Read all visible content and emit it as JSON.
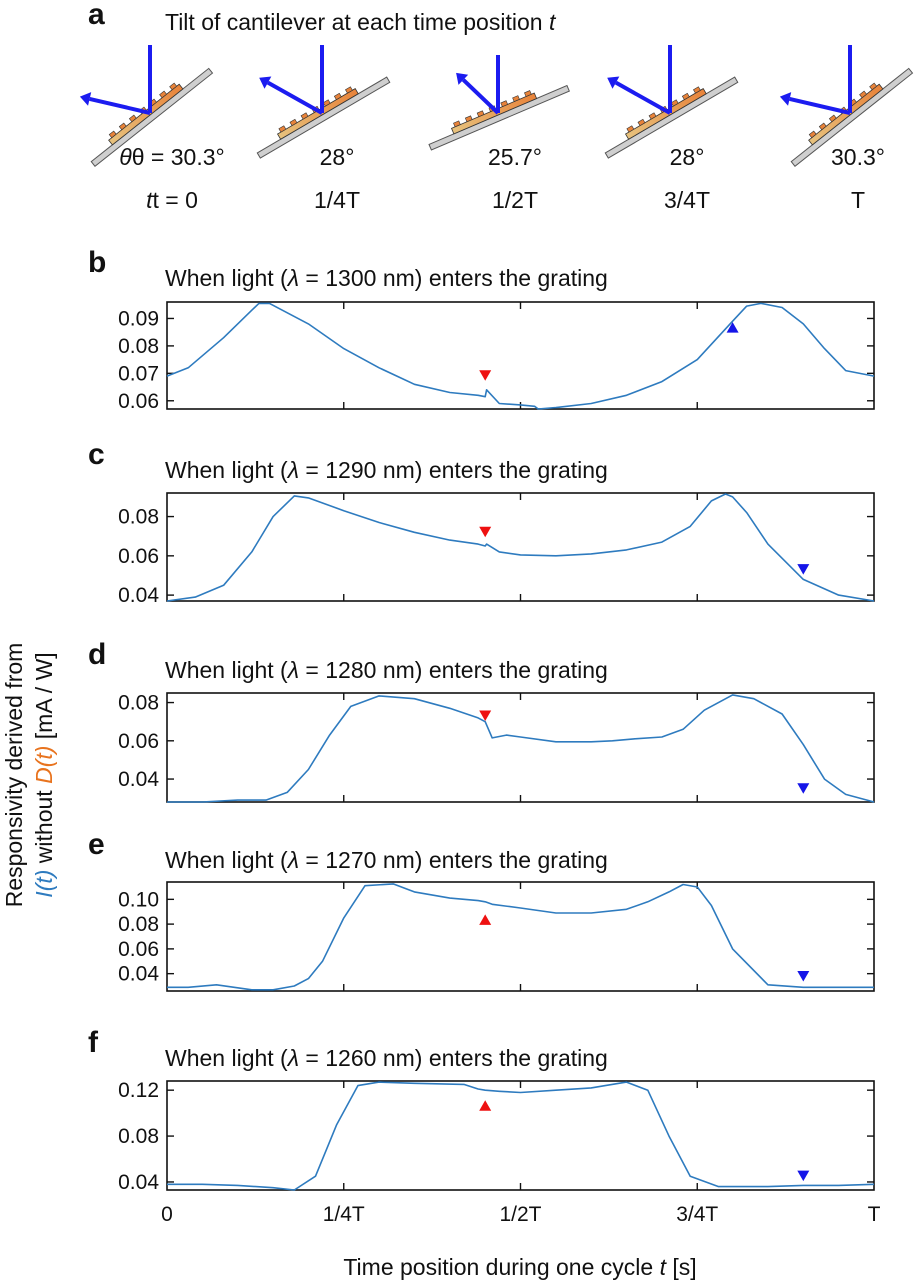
{
  "figure": {
    "panel_a": {
      "label": "a",
      "title_text": "Tilt of cantilever at each time position ",
      "title_var": "t",
      "items": [
        {
          "angle": "30.3°",
          "angle_prefix": "θ = ",
          "time": "0",
          "time_prefix": "t = "
        },
        {
          "angle": "28°",
          "time": "1/4T"
        },
        {
          "angle": "25.7°",
          "time": "1/2T"
        },
        {
          "angle": "28°",
          "time": "3/4T"
        },
        {
          "angle": "30.3°",
          "time": "T"
        }
      ],
      "colors": {
        "arrow": "#1c1cf0",
        "beam": "#cfcfcf",
        "grating": "#e8833a",
        "grating_light": "#e7c27d"
      }
    },
    "y_label": {
      "line1": "Responsivity derived from",
      "l_t": "I(t)",
      "without": " without ",
      "d_t": "D(t)",
      "units": "  [mA / W]"
    },
    "x_label": {
      "text": "Time position during one cycle ",
      "var": "t",
      "units": "  [s]"
    }
  },
  "chart_data": [
    {
      "type": "line",
      "panel": "b",
      "title_pre": "When light (",
      "title_lambda": "λ",
      "title_post": " = 1300 nm) enters the grating",
      "x_ticks": [
        "0",
        "1/4T",
        "1/2T",
        "3/4T",
        "T"
      ],
      "x_range": [
        0,
        1
      ],
      "ylim": [
        0.057,
        0.096
      ],
      "y_ticks": [
        "0.06",
        "0.07",
        "0.08",
        "0.09"
      ],
      "y_tick_values": [
        0.06,
        0.07,
        0.08,
        0.09
      ],
      "series": [
        {
          "color": "#2e7bbf",
          "x": [
            0,
            0.03,
            0.08,
            0.12,
            0.13,
            0.145,
            0.2,
            0.25,
            0.3,
            0.35,
            0.4,
            0.44,
            0.45,
            0.452,
            0.47,
            0.5,
            0.52,
            0.525,
            0.55,
            0.6,
            0.65,
            0.7,
            0.75,
            0.8,
            0.82,
            0.84,
            0.87,
            0.9,
            0.93,
            0.96,
            1.0
          ],
          "y": [
            0.069,
            0.072,
            0.083,
            0.093,
            0.0955,
            0.0955,
            0.088,
            0.079,
            0.072,
            0.066,
            0.063,
            0.062,
            0.0615,
            0.064,
            0.059,
            0.0585,
            0.058,
            0.057,
            0.0575,
            0.059,
            0.062,
            0.067,
            0.075,
            0.089,
            0.0945,
            0.0955,
            0.094,
            0.088,
            0.079,
            0.071,
            0.069
          ]
        }
      ],
      "markers": [
        {
          "x": 0.45,
          "y": 0.0695,
          "shape": "triangle-down",
          "color": "#ee1111"
        },
        {
          "x": 0.8,
          "y": 0.0865,
          "shape": "triangle-up",
          "color": "#1515e8"
        }
      ]
    },
    {
      "type": "line",
      "panel": "c",
      "title_pre": "When light (",
      "title_lambda": "λ",
      "title_post": " = 1290 nm) enters the grating",
      "x_ticks": [
        "0",
        "1/4T",
        "1/2T",
        "3/4T",
        "T"
      ],
      "x_range": [
        0,
        1
      ],
      "ylim": [
        0.037,
        0.092
      ],
      "y_ticks": [
        "0.04",
        "0.06",
        "0.08"
      ],
      "y_tick_values": [
        0.04,
        0.06,
        0.08
      ],
      "series": [
        {
          "color": "#2e7bbf",
          "x": [
            0,
            0.04,
            0.08,
            0.12,
            0.15,
            0.18,
            0.2,
            0.25,
            0.3,
            0.35,
            0.4,
            0.44,
            0.45,
            0.452,
            0.47,
            0.5,
            0.55,
            0.6,
            0.65,
            0.7,
            0.74,
            0.77,
            0.79,
            0.8,
            0.82,
            0.85,
            0.9,
            0.95,
            1.0
          ],
          "y": [
            0.037,
            0.039,
            0.045,
            0.062,
            0.08,
            0.0905,
            0.0895,
            0.083,
            0.077,
            0.072,
            0.068,
            0.066,
            0.065,
            0.066,
            0.062,
            0.0605,
            0.06,
            0.061,
            0.063,
            0.067,
            0.075,
            0.088,
            0.0915,
            0.09,
            0.082,
            0.066,
            0.048,
            0.04,
            0.037
          ]
        }
      ],
      "markers": [
        {
          "x": 0.45,
          "y": 0.0725,
          "shape": "triangle-down",
          "color": "#ee1111"
        },
        {
          "x": 0.9,
          "y": 0.0535,
          "shape": "triangle-down",
          "color": "#1515e8"
        }
      ]
    },
    {
      "type": "line",
      "panel": "d",
      "title_pre": "When light (",
      "title_lambda": "λ",
      "title_post": " = 1280 nm) enters the grating",
      "x_ticks": [
        "0",
        "1/4T",
        "1/2T",
        "3/4T",
        "T"
      ],
      "x_range": [
        0,
        1
      ],
      "ylim": [
        0.028,
        0.085
      ],
      "y_ticks": [
        "0.04",
        "0.06",
        "0.08"
      ],
      "y_tick_values": [
        0.04,
        0.06,
        0.08
      ],
      "series": [
        {
          "color": "#2e7bbf",
          "x": [
            0,
            0.05,
            0.1,
            0.14,
            0.17,
            0.2,
            0.23,
            0.26,
            0.3,
            0.35,
            0.4,
            0.44,
            0.45,
            0.46,
            0.48,
            0.5,
            0.55,
            0.6,
            0.63,
            0.66,
            0.7,
            0.73,
            0.76,
            0.8,
            0.83,
            0.87,
            0.9,
            0.93,
            0.96,
            1.0
          ],
          "y": [
            0.028,
            0.028,
            0.029,
            0.029,
            0.033,
            0.045,
            0.063,
            0.078,
            0.0835,
            0.082,
            0.077,
            0.072,
            0.07,
            0.0615,
            0.063,
            0.062,
            0.0595,
            0.0595,
            0.06,
            0.061,
            0.062,
            0.066,
            0.076,
            0.084,
            0.082,
            0.074,
            0.058,
            0.04,
            0.032,
            0.028
          ]
        }
      ],
      "markers": [
        {
          "x": 0.45,
          "y": 0.0735,
          "shape": "triangle-down",
          "color": "#ee1111"
        },
        {
          "x": 0.9,
          "y": 0.0355,
          "shape": "triangle-down",
          "color": "#1515e8"
        }
      ]
    },
    {
      "type": "line",
      "panel": "e",
      "title_pre": "When light (",
      "title_lambda": "λ",
      "title_post": " = 1270 nm) enters the grating",
      "x_ticks": [
        "0",
        "1/4T",
        "1/2T",
        "3/4T",
        "T"
      ],
      "x_range": [
        0,
        1
      ],
      "ylim": [
        0.026,
        0.114
      ],
      "y_ticks": [
        "0.04",
        "0.06",
        "0.08",
        "0.10"
      ],
      "y_tick_values": [
        0.04,
        0.06,
        0.08,
        0.1
      ],
      "series": [
        {
          "color": "#2e7bbf",
          "x": [
            0,
            0.03,
            0.07,
            0.12,
            0.15,
            0.18,
            0.2,
            0.22,
            0.25,
            0.28,
            0.32,
            0.35,
            0.4,
            0.44,
            0.45,
            0.46,
            0.5,
            0.55,
            0.6,
            0.65,
            0.68,
            0.71,
            0.73,
            0.75,
            0.77,
            0.8,
            0.85,
            0.9,
            0.95,
            1.0
          ],
          "y": [
            0.029,
            0.029,
            0.031,
            0.027,
            0.027,
            0.03,
            0.036,
            0.05,
            0.085,
            0.111,
            0.1125,
            0.106,
            0.101,
            0.099,
            0.098,
            0.096,
            0.093,
            0.089,
            0.089,
            0.092,
            0.098,
            0.106,
            0.112,
            0.11,
            0.095,
            0.06,
            0.031,
            0.029,
            0.029,
            0.029
          ]
        }
      ],
      "markers": [
        {
          "x": 0.45,
          "y": 0.083,
          "shape": "triangle-up",
          "color": "#ee1111"
        },
        {
          "x": 0.9,
          "y": 0.0385,
          "shape": "triangle-down",
          "color": "#1515e8"
        }
      ]
    },
    {
      "type": "line",
      "panel": "f",
      "title_pre": "When light (",
      "title_lambda": "λ",
      "title_post": " = 1260 nm) enters the grating",
      "x_ticks": [
        "0",
        "1/4T",
        "1/2T",
        "3/4T",
        "T"
      ],
      "x_range": [
        0,
        1
      ],
      "ylim": [
        0.033,
        0.128
      ],
      "y_ticks": [
        "0.04",
        "0.08",
        "0.12"
      ],
      "y_tick_values": [
        0.04,
        0.08,
        0.12
      ],
      "series": [
        {
          "color": "#2e7bbf",
          "x": [
            0,
            0.05,
            0.1,
            0.15,
            0.18,
            0.21,
            0.24,
            0.27,
            0.3,
            0.35,
            0.42,
            0.44,
            0.45,
            0.47,
            0.5,
            0.55,
            0.6,
            0.62,
            0.65,
            0.68,
            0.71,
            0.74,
            0.78,
            0.85,
            0.9,
            0.95,
            1.0
          ],
          "y": [
            0.038,
            0.038,
            0.037,
            0.035,
            0.033,
            0.045,
            0.09,
            0.124,
            0.127,
            0.126,
            0.125,
            0.121,
            0.12,
            0.119,
            0.118,
            0.12,
            0.122,
            0.124,
            0.127,
            0.12,
            0.08,
            0.045,
            0.036,
            0.036,
            0.037,
            0.037,
            0.038
          ]
        }
      ],
      "markers": [
        {
          "x": 0.45,
          "y": 0.106,
          "shape": "triangle-up",
          "color": "#ee1111"
        },
        {
          "x": 0.9,
          "y": 0.046,
          "shape": "triangle-down",
          "color": "#1515e8"
        }
      ]
    }
  ]
}
